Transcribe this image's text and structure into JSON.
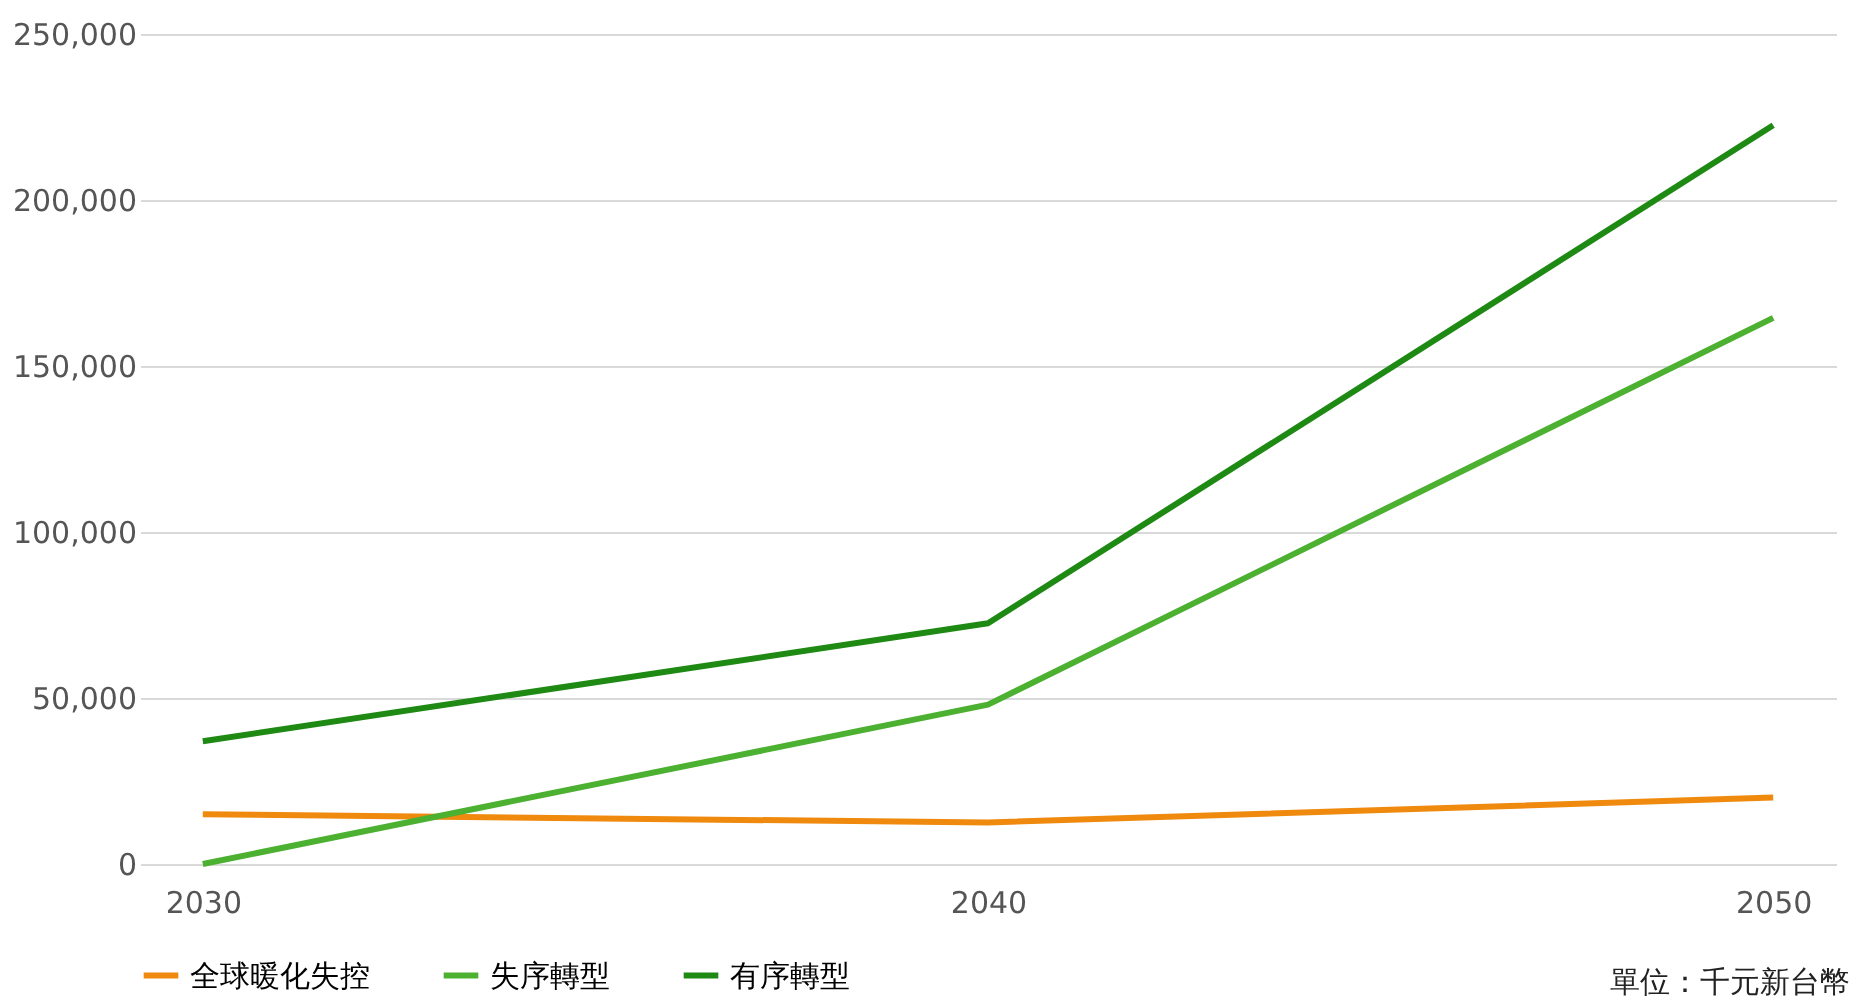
{
  "chart_data": {
    "type": "line",
    "categories": [
      "2030",
      "2040",
      "2050"
    ],
    "series": [
      {
        "name": "全球暖化失控",
        "color": "#ef8a0e",
        "values": [
          15000,
          12500,
          20000
        ]
      },
      {
        "name": "失序轉型",
        "color": "#4cb030",
        "values": [
          0,
          48000,
          164500
        ]
      },
      {
        "name": "有序轉型",
        "color": "#1e8a14",
        "values": [
          37000,
          72500,
          222500
        ]
      }
    ],
    "ylim": [
      0,
      250000
    ],
    "yticks": [
      0,
      {
        "value": 50000,
        "label": "50,000"
      },
      {
        "value": 100000,
        "label": "100,000"
      },
      {
        "value": 150000,
        "label": "150,000"
      },
      {
        "value": 200000,
        "label": "200,000"
      },
      {
        "value": 250000,
        "label": "250,000"
      }
    ],
    "grid": "y",
    "legend": "bottom",
    "marker": "none",
    "line_style": "solid",
    "annotations": [
      "單位：千元新台幣"
    ]
  }
}
